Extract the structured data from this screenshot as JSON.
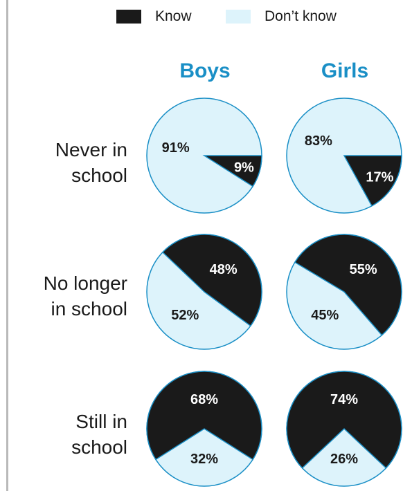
{
  "colors": {
    "know": "#1a1a1a",
    "dont_know": "#ddf3fb",
    "outline": "#1a8fc6",
    "heading": "#1a8fc6",
    "rule": "#b9b9b9"
  },
  "legend": {
    "know_label": "Know",
    "dont_know_label": "Don’t know"
  },
  "columns": [
    "Boys",
    "Girls"
  ],
  "rows": [
    {
      "lines": [
        "Never in",
        "school"
      ]
    },
    {
      "lines": [
        "No longer",
        "in school"
      ]
    },
    {
      "lines": [
        "Still in",
        "school"
      ]
    }
  ],
  "chart_data": {
    "type": "pie",
    "series_names": [
      "Know",
      "Don’t know"
    ],
    "panels": [
      {
        "row": "Never in school",
        "group": "Boys",
        "know": 9,
        "dont_know": 91,
        "labels": [
          "9%",
          "91%"
        ]
      },
      {
        "row": "Never in school",
        "group": "Girls",
        "know": 17,
        "dont_know": 83,
        "labels": [
          "17%",
          "83%"
        ]
      },
      {
        "row": "No longer in school",
        "group": "Boys",
        "know": 48,
        "dont_know": 52,
        "labels": [
          "48%",
          "52%"
        ]
      },
      {
        "row": "No longer in school",
        "group": "Girls",
        "know": 55,
        "dont_know": 45,
        "labels": [
          "55%",
          "45%"
        ]
      },
      {
        "row": "Still in school",
        "group": "Boys",
        "know": 68,
        "dont_know": 32,
        "labels": [
          "68%",
          "32%"
        ]
      },
      {
        "row": "Still in school",
        "group": "Girls",
        "know": 74,
        "dont_know": 26,
        "labels": [
          "74%",
          "26%"
        ]
      }
    ]
  }
}
